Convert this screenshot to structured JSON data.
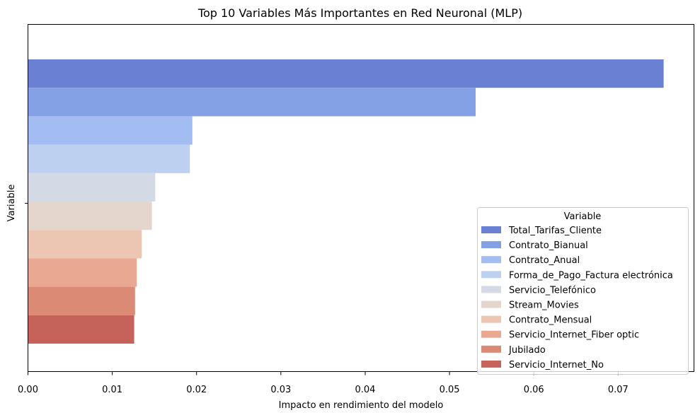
{
  "chart_data": {
    "type": "bar",
    "orientation": "horizontal",
    "title": "Top 10 Variables Más Importantes en Red Neuronal (MLP)",
    "xlabel": "Impacto en rendimiento del modelo",
    "ylabel": "Variable",
    "xlim": [
      0,
      0.079
    ],
    "x_ticks": [
      0.0,
      0.01,
      0.02,
      0.03,
      0.04,
      0.05,
      0.06,
      0.07
    ],
    "x_tick_labels": [
      "0.00",
      "0.01",
      "0.02",
      "0.03",
      "0.04",
      "0.05",
      "0.06",
      "0.07"
    ],
    "grid": false,
    "legend": {
      "title": "Variable",
      "placement": "lower right"
    },
    "categories": [
      "Total_Tarifas_Cliente",
      "Contrato_Bianual",
      "Contrato_Anual",
      "Forma_de_Pago_Factura electrónica",
      "Servicio_Telefónico",
      "Stream_Movies",
      "Contrato_Mensual",
      "Servicio_Internet_Fiber optic",
      "Jubilado",
      "Servicio_Internet_No"
    ],
    "values": [
      0.0754,
      0.0531,
      0.0195,
      0.0192,
      0.0151,
      0.0147,
      0.0135,
      0.0129,
      0.0127,
      0.0126
    ],
    "colors": [
      "#6a80d3",
      "#84a0e5",
      "#a3bcf2",
      "#bdd0f0",
      "#d4dae5",
      "#e4d6cd",
      "#edc5b3",
      "#e8a891",
      "#da8a75",
      "#c5625a"
    ]
  }
}
